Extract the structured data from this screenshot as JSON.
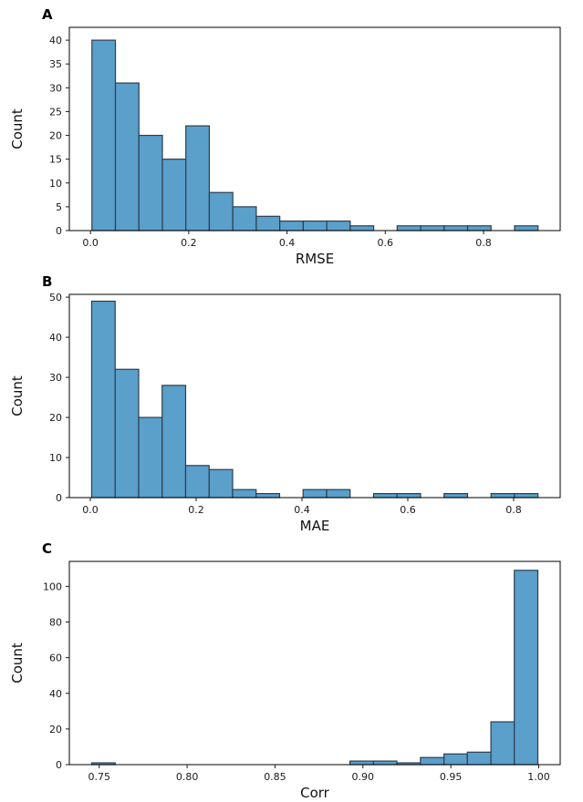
{
  "figure": {
    "background": "#ffffff",
    "bar_fill": "#5b9fcb",
    "bar_edge": "#2d3e4e",
    "spine_color": "#000000",
    "tick_color": "#1a1a1a",
    "text_color": "#111111"
  },
  "chart_data": [
    {
      "type": "bar",
      "panel_label": "A",
      "xlabel": "RMSE",
      "ylabel": "Count",
      "legend": null,
      "grid": false,
      "xlim": [
        -0.043,
        0.956
      ],
      "ylim": [
        0,
        42.7
      ],
      "xticks": {
        "values": [
          0.0,
          0.2,
          0.4,
          0.6,
          0.8
        ],
        "labels": [
          "0.0",
          "0.2",
          "0.4",
          "0.6",
          "0.8"
        ]
      },
      "yticks": {
        "values": [
          0,
          5,
          10,
          15,
          20,
          25,
          30,
          35,
          40
        ],
        "labels": [
          "0",
          "5",
          "10",
          "15",
          "20",
          "25",
          "30",
          "35",
          "40"
        ]
      },
      "bins": {
        "edges": [
          0.003,
          0.0508,
          0.0986,
          0.1464,
          0.1941,
          0.2419,
          0.2897,
          0.3375,
          0.3853,
          0.4331,
          0.4809,
          0.5286,
          0.5764,
          0.6242,
          0.672,
          0.7198,
          0.7676,
          0.8153,
          0.8631,
          0.9109
        ],
        "counts": [
          40,
          31,
          20,
          15,
          22,
          8,
          5,
          3,
          2,
          2,
          2,
          1,
          0,
          1,
          1,
          1,
          1,
          0,
          1
        ]
      }
    },
    {
      "type": "bar",
      "panel_label": "B",
      "xlabel": "MAE",
      "ylabel": "Count",
      "legend": null,
      "grid": false,
      "xlim": [
        -0.0397,
        0.888
      ],
      "ylim": [
        0,
        50.7
      ],
      "xticks": {
        "values": [
          0.0,
          0.2,
          0.4,
          0.6,
          0.8
        ],
        "labels": [
          "0.0",
          "0.2",
          "0.4",
          "0.6",
          "0.8"
        ]
      },
      "yticks": {
        "values": [
          0,
          10,
          20,
          30,
          40,
          50
        ],
        "labels": [
          "0",
          "10",
          "20",
          "30",
          "40",
          "50"
        ]
      },
      "bins": {
        "edges": [
          0.0025,
          0.0469,
          0.0913,
          0.1357,
          0.1801,
          0.2245,
          0.2689,
          0.3133,
          0.3577,
          0.4021,
          0.4465,
          0.4909,
          0.5353,
          0.5797,
          0.6241,
          0.6685,
          0.7129,
          0.7573,
          0.8017,
          0.8461
        ],
        "counts": [
          49,
          32,
          20,
          28,
          8,
          7,
          2,
          1,
          0,
          2,
          2,
          0,
          1,
          1,
          0,
          1,
          0,
          1,
          1
        ]
      }
    },
    {
      "type": "bar",
      "panel_label": "C",
      "xlabel": "Corr",
      "ylabel": "Count",
      "legend": null,
      "grid": false,
      "xlim": [
        0.733,
        1.0122
      ],
      "ylim": [
        0,
        114
      ],
      "xticks": {
        "values": [
          0.75,
          0.8,
          0.85,
          0.9,
          0.95,
          1.0
        ],
        "labels": [
          "0.75",
          "0.80",
          "0.85",
          "0.90",
          "0.95",
          "1.00"
        ]
      },
      "yticks": {
        "values": [
          0,
          20,
          40,
          60,
          80,
          100
        ],
        "labels": [
          "0",
          "20",
          "40",
          "60",
          "80",
          "100"
        ]
      },
      "bins": {
        "edges": [
          0.7457,
          0.7591,
          0.7724,
          0.7858,
          0.7991,
          0.8125,
          0.8258,
          0.8392,
          0.8526,
          0.8659,
          0.8793,
          0.8926,
          0.906,
          0.9193,
          0.9327,
          0.9461,
          0.9594,
          0.9728,
          0.9861,
          0.9995
        ],
        "counts": [
          1,
          0,
          0,
          0,
          0,
          0,
          0,
          0,
          0,
          0,
          0,
          2,
          2,
          1,
          4,
          6,
          7,
          24,
          109
        ]
      }
    }
  ]
}
